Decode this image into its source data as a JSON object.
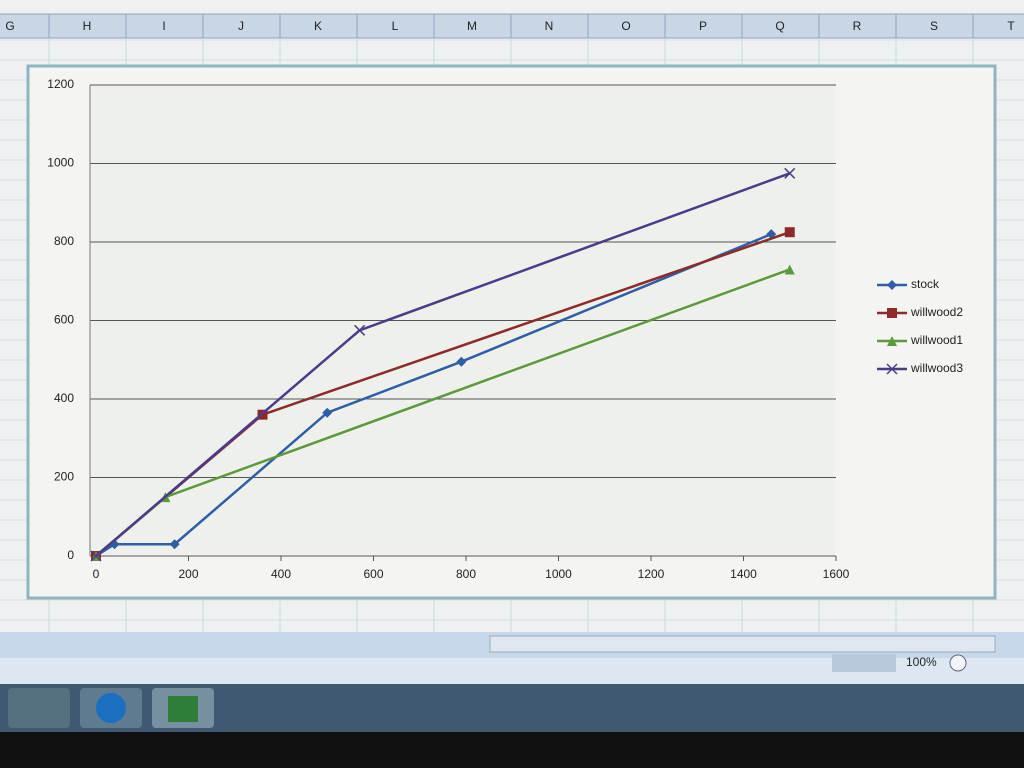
{
  "columns": [
    "G",
    "H",
    "I",
    "J",
    "K",
    "L",
    "M",
    "N",
    "O",
    "P",
    "Q",
    "R",
    "S",
    "T"
  ],
  "zoom": "100%",
  "chart_data": {
    "type": "line",
    "xlim": [
      0,
      1600
    ],
    "xticks": [
      0,
      200,
      400,
      600,
      800,
      1000,
      1200,
      1400,
      1600
    ],
    "ylim": [
      0,
      1200
    ],
    "yticks": [
      0,
      200,
      400,
      600,
      800,
      1000,
      1200
    ],
    "grid": true,
    "legend": "right",
    "series": [
      {
        "name": "stock",
        "color": "#2f5ea8",
        "marker": "diamond",
        "x": [
          0,
          40,
          170,
          500,
          790,
          1460
        ],
        "values": [
          0,
          30,
          30,
          365,
          495,
          820
        ]
      },
      {
        "name": "willwood2",
        "color": "#8e2a2a",
        "marker": "square",
        "x": [
          0,
          360,
          1500
        ],
        "values": [
          0,
          360,
          825
        ]
      },
      {
        "name": "willwood1",
        "color": "#5b9a3c",
        "marker": "triangle",
        "x": [
          0,
          150,
          1500
        ],
        "values": [
          0,
          150,
          730
        ]
      },
      {
        "name": "willwood3",
        "color": "#4a3b8c",
        "marker": "x",
        "x": [
          0,
          570,
          1500
        ],
        "values": [
          0,
          575,
          975
        ]
      }
    ]
  }
}
